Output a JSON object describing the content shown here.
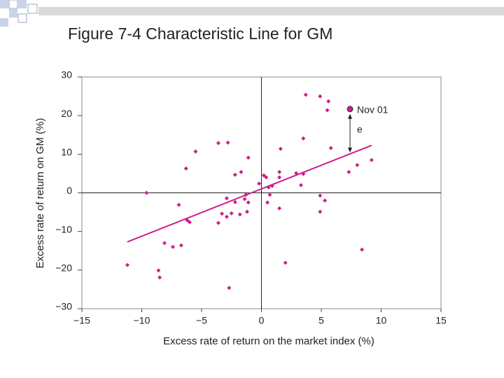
{
  "chart_data": {
    "type": "scatter",
    "title": "Figure 7-4 Characteristic Line for GM",
    "x_label": "Excess rate of return on the market index (%)",
    "y_label": "Excess rate of return on GM (%)",
    "color": "#d01c8b",
    "xlim": [
      -15,
      15
    ],
    "ylim": [
      -30,
      30
    ],
    "xticks": [
      {
        "value": -15,
        "label": "−15"
      },
      {
        "value": -10,
        "label": "−10"
      },
      {
        "value": -5,
        "label": "−5"
      },
      0,
      5,
      10,
      15
    ],
    "yticks": [
      {
        "value": -30,
        "label": "−30"
      },
      {
        "value": -20,
        "label": "−20"
      },
      {
        "value": -10,
        "label": "−10"
      },
      0,
      10,
      20,
      30
    ],
    "x": [
      3.7,
      4.9,
      5.6,
      5.5,
      3.5,
      -3.6,
      -2.8,
      -5.5,
      1.6,
      5.8,
      -1.1,
      -6.3,
      -1.7,
      -2.2,
      2.9,
      3.5,
      1.5,
      0.2,
      0.4,
      7.3,
      8.0,
      9.2,
      1.5,
      -0.2,
      0.9,
      0.6,
      3.3,
      -9.6,
      -1.3,
      0.7,
      4.9,
      -2.9,
      -1.4,
      -2.2,
      -1.1,
      0.5,
      5.3,
      -6.9,
      1.5,
      -1.2,
      -3.3,
      -2.5,
      -2.9,
      -1.8,
      4.9,
      -6.2,
      -6.0,
      -3.6,
      -8.1,
      -6.7,
      -7.4,
      8.4,
      -11.2,
      2.0,
      -8.6,
      -8.5,
      -2.7
    ],
    "y": [
      25.4,
      25.0,
      23.7,
      21.4,
      14.1,
      12.9,
      13.0,
      10.7,
      11.4,
      11.6,
      9.1,
      6.3,
      5.4,
      4.7,
      5.1,
      4.9,
      5.4,
      4.5,
      4.0,
      5.4,
      7.2,
      8.5,
      4.0,
      2.4,
      1.8,
      1.4,
      2.0,
      0,
      -0.5,
      -0.5,
      -0.7,
      -1.4,
      -1.6,
      -2.4,
      -2.5,
      -2.5,
      -2.0,
      -3.1,
      -4.0,
      -4.9,
      -5.4,
      -5.3,
      -6.2,
      -5.6,
      -4.9,
      -7.1,
      -7.6,
      -7.8,
      -13.0,
      -13.6,
      -14.0,
      -14.7,
      -18.7,
      -18.1,
      -20.1,
      -21.9,
      -24.6
    ],
    "fit_line": {
      "x": [
        -11.2,
        9.2
      ],
      "y": [
        -12.7,
        12.3
      ]
    },
    "highlight": {
      "x": 7.4,
      "y": 21.7,
      "label": "Nov 01"
    },
    "error_label": "e"
  }
}
